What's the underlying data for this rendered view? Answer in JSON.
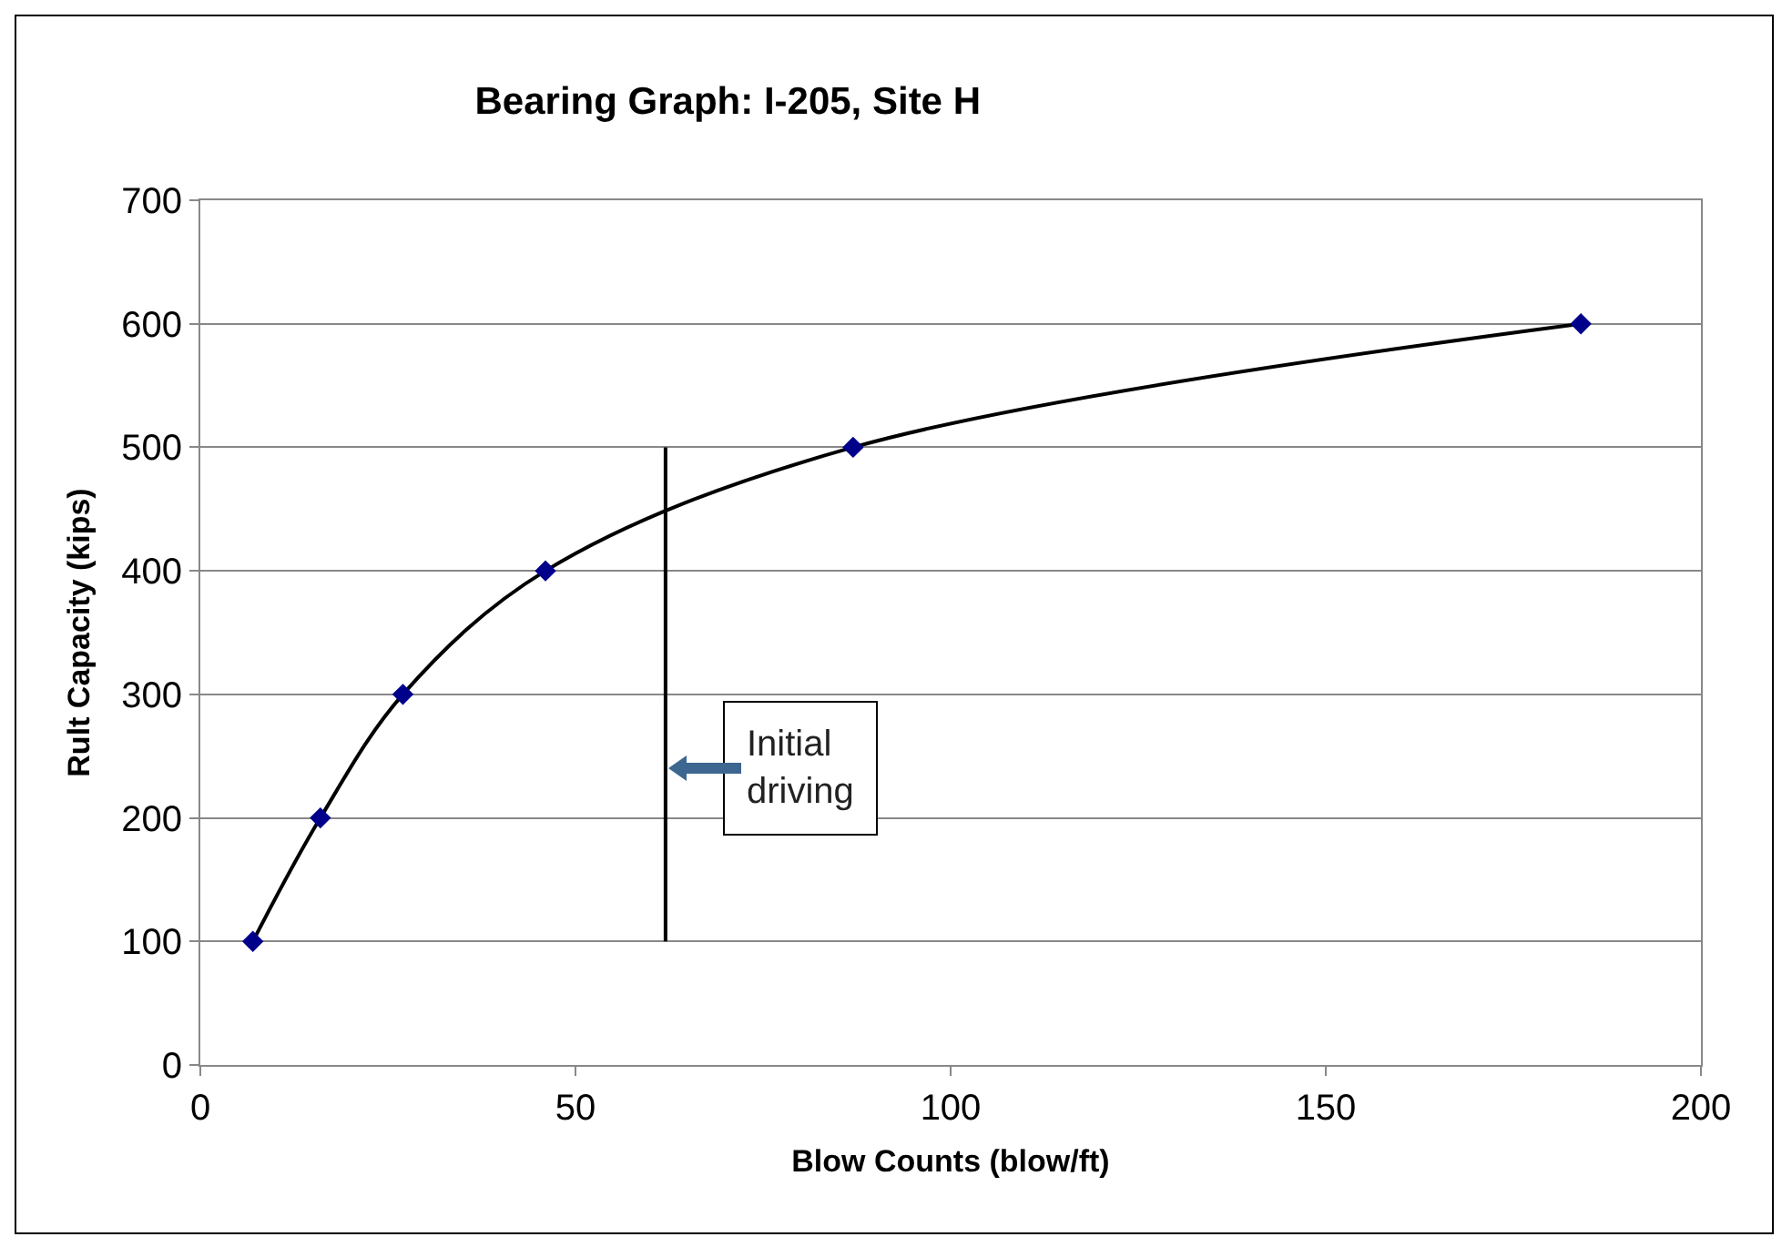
{
  "chart_data": {
    "type": "line",
    "title": "Bearing Graph: I-205, Site H",
    "xlabel": "Blow Counts (blow/ft)",
    "ylabel": "Rult Capacity (kips)",
    "x": [
      7,
      16,
      27,
      46,
      87,
      184
    ],
    "series": [
      {
        "color": "#00008b",
        "values": [
          100,
          200,
          300,
          400,
          500,
          600
        ]
      },
      {
        "color": "#000000",
        "x": [
          62,
          62
        ],
        "values": [
          100,
          500
        ],
        "marker": "none"
      }
    ],
    "annotations": [
      {
        "text": "Initial\ndriving",
        "x": 62,
        "y": 240
      }
    ],
    "xlim": [
      0,
      200
    ],
    "xticks": [
      0,
      50,
      100,
      150,
      200
    ],
    "ylim": [
      0,
      700
    ],
    "yticks": [
      0,
      100,
      200,
      300,
      400,
      500,
      600,
      700
    ],
    "grid": "y",
    "marker": "diamond"
  }
}
